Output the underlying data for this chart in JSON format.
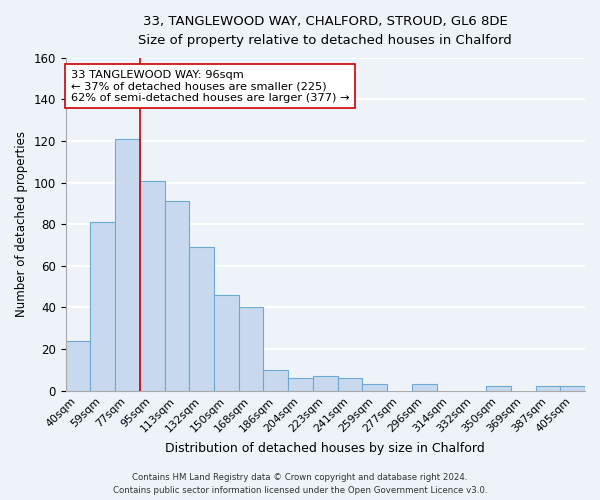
{
  "title_line1": "33, TANGLEWOOD WAY, CHALFORD, STROUD, GL6 8DE",
  "title_line2": "Size of property relative to detached houses in Chalford",
  "xlabel": "Distribution of detached houses by size in Chalford",
  "ylabel": "Number of detached properties",
  "bar_labels": [
    "40sqm",
    "59sqm",
    "77sqm",
    "95sqm",
    "113sqm",
    "132sqm",
    "150sqm",
    "168sqm",
    "186sqm",
    "204sqm",
    "223sqm",
    "241sqm",
    "259sqm",
    "277sqm",
    "296sqm",
    "314sqm",
    "332sqm",
    "350sqm",
    "369sqm",
    "387sqm",
    "405sqm"
  ],
  "bar_values": [
    24,
    81,
    121,
    101,
    91,
    69,
    46,
    40,
    10,
    6,
    7,
    6,
    3,
    0,
    3,
    0,
    0,
    2,
    0,
    2,
    2
  ],
  "bar_color": "#c8d9ef",
  "bar_edge_color": "#6aaad4",
  "annotation_box_text": "33 TANGLEWOOD WAY: 96sqm\n← 37% of detached houses are smaller (225)\n62% of semi-detached houses are larger (377) →",
  "redline_x": 2.5,
  "ylim": [
    0,
    160
  ],
  "yticks": [
    0,
    20,
    40,
    60,
    80,
    100,
    120,
    140,
    160
  ],
  "background_color": "#eef2f9",
  "grid_color": "#ffffff",
  "footer_line1": "Contains HM Land Registry data © Crown copyright and database right 2024.",
  "footer_line2": "Contains public sector information licensed under the Open Government Licence v3.0."
}
